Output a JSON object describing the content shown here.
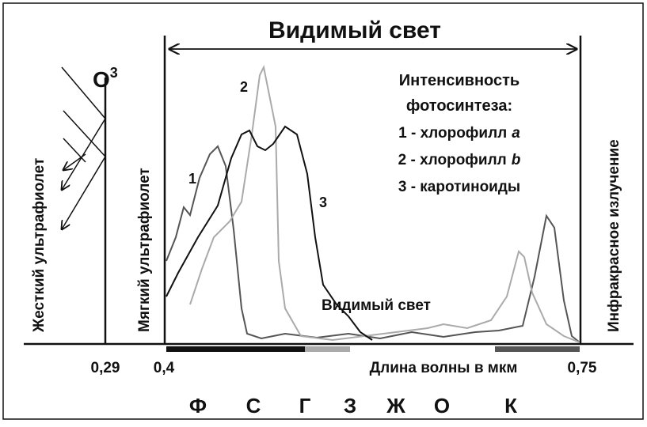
{
  "title": "Видимый свет",
  "ozone": {
    "base": "O",
    "sup": "3"
  },
  "vertical_labels": [
    "Жесткий ультрафиолет",
    "Мягкий ультрафиолет",
    "Инфракрасное излучение"
  ],
  "legend": {
    "heading": [
      "Интенсивность",
      "фотосинтеза:"
    ],
    "items": [
      {
        "text": "1 - хлорофилл",
        "letter": "a"
      },
      {
        "text": "2 - хлорофилл",
        "letter": "b"
      },
      {
        "text": "3 - каротиноиды"
      }
    ]
  },
  "curve_labels": [
    "1",
    "2",
    "3"
  ],
  "inner_label": "Видимый свет",
  "axis": {
    "ticks": [
      "0,29",
      "0,4",
      "0,75"
    ],
    "label": "Длина волны в мкм"
  },
  "colors": [
    "Ф",
    "С",
    "Г",
    "З",
    "Ж",
    "О",
    "К"
  ]
}
